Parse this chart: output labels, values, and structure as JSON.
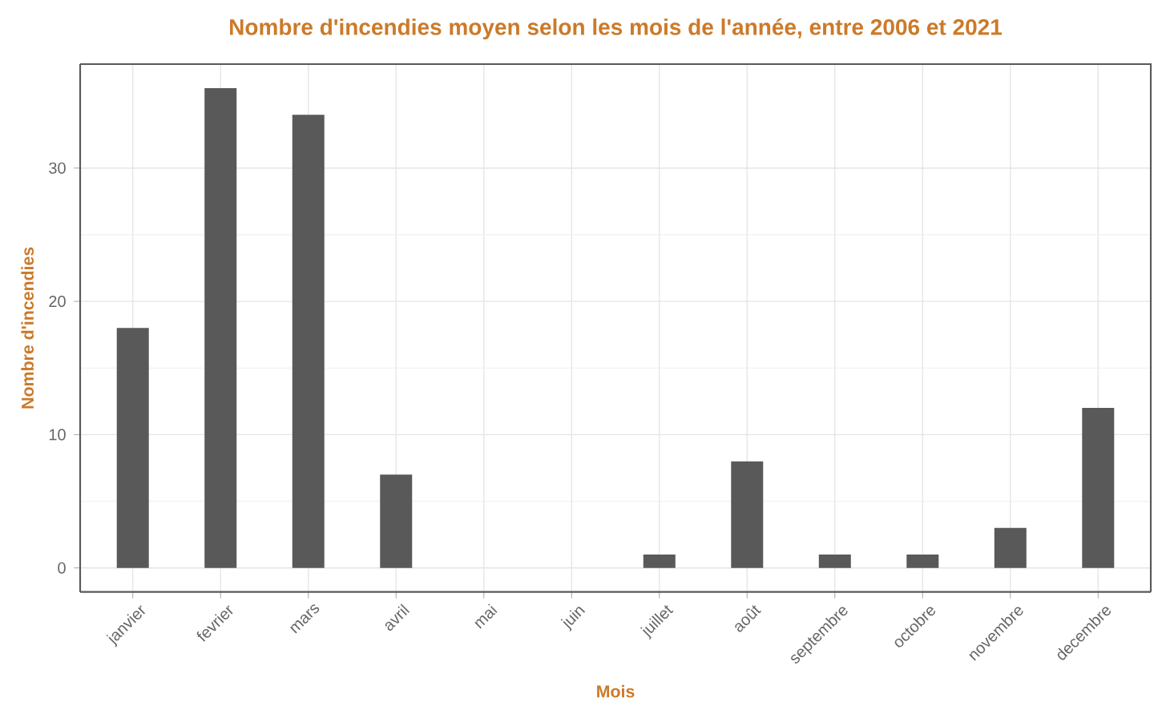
{
  "chart_data": {
    "type": "bar",
    "title": "Nombre d'incendies moyen selon les mois de l'année, entre 2006 et 2021",
    "xlabel": "Mois",
    "ylabel": "Nombre d'incendies",
    "categories": [
      "janvier",
      "fevrier",
      "mars",
      "avril",
      "mai",
      "juin",
      "juillet",
      "août",
      "septembre",
      "octobre",
      "novembre",
      "decembre"
    ],
    "values": [
      18,
      36,
      34,
      7,
      0,
      0,
      1,
      8,
      1,
      1,
      3,
      12
    ],
    "color": "#595959",
    "ylim": [
      -1.8,
      37.8
    ],
    "yticks": [
      0,
      10,
      20,
      30
    ],
    "grid": true
  }
}
